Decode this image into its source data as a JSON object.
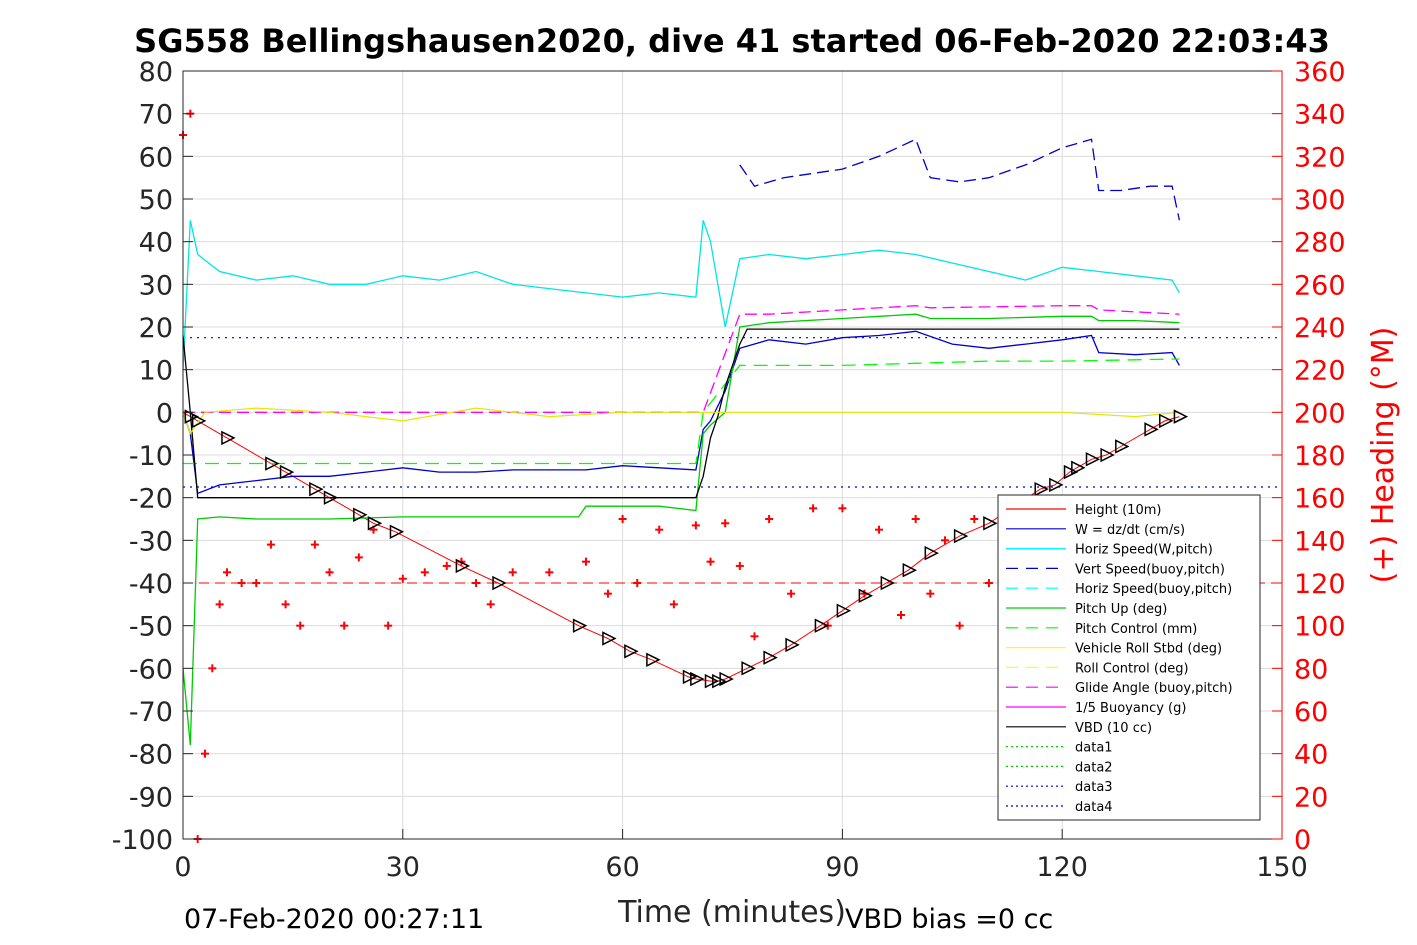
{
  "chart_data": {
    "type": "line",
    "title": "SG558 Bellingshausen2020, dive 41 started 06-Feb-2020 22:03:43",
    "xlabel": "Time (minutes)",
    "ylabel": "",
    "y2label": "(+) Heading (°M)",
    "xlim": [
      0,
      150
    ],
    "ylim": [
      -100,
      80
    ],
    "y2lim": [
      0,
      360
    ],
    "xticks": [
      0,
      30,
      60,
      90,
      120,
      150
    ],
    "yticks": [
      80,
      70,
      60,
      50,
      40,
      30,
      20,
      10,
      0,
      -10,
      -20,
      -30,
      -40,
      -50,
      -60,
      -70,
      -80,
      -90,
      -100
    ],
    "y2ticks": [
      360,
      340,
      320,
      300,
      280,
      260,
      240,
      220,
      200,
      180,
      160,
      140,
      120,
      100,
      80,
      60,
      40,
      20,
      0
    ],
    "grid": true,
    "legend_position": "bottom-right",
    "footer_left": "07-Feb-2020 00:27:11",
    "footer_right": "VBD bias =0 cc",
    "colors": {
      "height": "#ff0000",
      "w": "#0000cd",
      "horiz_speed": "#00ffff",
      "pitch": "#00ff00",
      "roll": "#ffff00",
      "glide": "#ff00ff",
      "vbd": "#000000",
      "heading": "#ff0000",
      "axis_right": "#ff0000"
    },
    "legend": [
      {
        "label": "Height (10m)",
        "color": "#ff0000",
        "dash": "solid"
      },
      {
        "label": "W = dz/dt (cm/s)",
        "color": "#0000cd",
        "dash": "solid"
      },
      {
        "label": "Horiz Speed(W,pitch)",
        "color": "#00ffff",
        "dash": "solid"
      },
      {
        "label": "Vert Speed(buoy,pitch)",
        "color": "#0000cd",
        "dash": "dashed"
      },
      {
        "label": "Horiz Speed(buoy,pitch)",
        "color": "#00ffff",
        "dash": "dashed"
      },
      {
        "label": "Pitch Up (deg)",
        "color": "#00cc00",
        "dash": "solid"
      },
      {
        "label": "Pitch Control (mm)",
        "color": "#00ff00",
        "dash": "dashed"
      },
      {
        "label": "Vehicle Roll Stbd (deg)",
        "color": "#ffff00",
        "dash": "solid"
      },
      {
        "label": "Roll Control (deg)",
        "color": "#ffff00",
        "dash": "dashed"
      },
      {
        "label": "Glide Angle (buoy,pitch)",
        "color": "#ff00ff",
        "dash": "dashed"
      },
      {
        "label": "1/5 Buoyancy (g)",
        "color": "#ff00ff",
        "dash": "solid"
      },
      {
        "label": "VBD (10 cc)",
        "color": "#000000",
        "dash": "solid"
      },
      {
        "label": "data1",
        "color": "#00cc00",
        "dash": "dotted"
      },
      {
        "label": "data2",
        "color": "#00cc00",
        "dash": "dotted"
      },
      {
        "label": "data3",
        "color": "#0000cd",
        "dash": "dotted"
      },
      {
        "label": "data4",
        "color": "#0000cd",
        "dash": "dotted"
      }
    ],
    "series": [
      {
        "name": "Height (10m)",
        "x": [
          0,
          1,
          2,
          6,
          12,
          14,
          18,
          20,
          24,
          26,
          29,
          38,
          43,
          54,
          58,
          61,
          64,
          69,
          70,
          72,
          73,
          74,
          77,
          80,
          83,
          87,
          90,
          93,
          96,
          99,
          102,
          106,
          110,
          117,
          119,
          121,
          122,
          124,
          126,
          128,
          132,
          134,
          136
        ],
        "y": [
          0,
          -1,
          -2,
          -6,
          -12,
          -14,
          -18,
          -20,
          -24,
          -26,
          -28,
          -36,
          -40,
          -50,
          -53,
          -56,
          -58,
          -62,
          -62.5,
          -63,
          -63,
          -62.5,
          -60,
          -57.5,
          -54.5,
          -50,
          -46.5,
          -43,
          -40,
          -37,
          -33,
          -29,
          -26,
          -18,
          -17,
          -14,
          -13,
          -11,
          -10,
          -8,
          -4,
          -2,
          -1
        ]
      },
      {
        "name": "W = dz/dt (cm/s)",
        "x": [
          0,
          1,
          2,
          5,
          10,
          15,
          20,
          25,
          30,
          35,
          40,
          45,
          50,
          55,
          60,
          65,
          70,
          71,
          72,
          74,
          76,
          80,
          85,
          90,
          95,
          100,
          105,
          110,
          115,
          120,
          124,
          125,
          130,
          135,
          136
        ],
        "y": [
          0,
          -5,
          -19,
          -17,
          -16,
          -15,
          -15,
          -14,
          -13,
          -14,
          -14,
          -13.5,
          -13.5,
          -13.5,
          -12.5,
          -13,
          -13.5,
          -4,
          -2,
          5,
          15,
          17,
          16,
          17.5,
          18,
          19,
          16,
          15,
          16,
          17,
          18,
          14,
          13.5,
          14,
          11
        ]
      },
      {
        "name": "Horiz Speed(W,pitch)",
        "x": [
          0,
          1,
          2,
          5,
          10,
          15,
          20,
          25,
          30,
          35,
          40,
          45,
          50,
          55,
          60,
          65,
          70,
          71,
          72,
          74,
          76,
          80,
          85,
          90,
          95,
          100,
          105,
          110,
          115,
          120,
          125,
          130,
          135,
          136
        ],
        "y": [
          10,
          45,
          37,
          33,
          31,
          32,
          30,
          30,
          32,
          31,
          33,
          30,
          29,
          28,
          27,
          28,
          27,
          45,
          40,
          20,
          36,
          37,
          36,
          37,
          38,
          37,
          35,
          33,
          31,
          34,
          33,
          32,
          31,
          28
        ]
      },
      {
        "name": "Vert Speed(buoy,pitch)",
        "x": [
          76,
          78,
          82,
          86,
          90,
          95,
          100,
          102,
          106,
          110,
          115,
          120,
          124,
          125,
          128,
          132,
          135,
          136
        ],
        "y": [
          58,
          53,
          55,
          56,
          57,
          60,
          64,
          55,
          54,
          55,
          58,
          62,
          64,
          52,
          52,
          53,
          53,
          45
        ]
      },
      {
        "name": "Pitch Up (deg)",
        "x": [
          0,
          1,
          2,
          5,
          10,
          20,
          30,
          40,
          50,
          54,
          55,
          60,
          65,
          70,
          71,
          72,
          74,
          76,
          80,
          90,
          100,
          102,
          110,
          120,
          124,
          125,
          130,
          136
        ],
        "y": [
          -60,
          -78,
          -25,
          -24.5,
          -25,
          -25,
          -24.5,
          -24.5,
          -24.5,
          -24.5,
          -22,
          -22,
          -22,
          -23,
          -5,
          -3,
          0,
          20,
          21,
          22,
          23,
          22,
          22,
          22.5,
          22.5,
          21.5,
          21.5,
          21
        ]
      },
      {
        "name": "Pitch Control (mm)",
        "x": [
          0,
          2,
          70,
          71,
          76,
          90,
          100,
          110,
          120,
          136
        ],
        "y": [
          -12,
          -12,
          -12,
          0,
          11,
          11,
          11.5,
          12,
          12,
          12.5
        ]
      },
      {
        "name": "Glide Angle (buoy,pitch)",
        "x": [
          0,
          70,
          71,
          76,
          80,
          90,
          100,
          102,
          120,
          124,
          125,
          136
        ],
        "y": [
          0,
          0,
          0,
          23,
          23,
          24,
          25,
          24.5,
          25,
          25,
          24,
          23
        ]
      },
      {
        "name": "VBD (10 cc)",
        "x": [
          0,
          1,
          2,
          70,
          71,
          72,
          73,
          74,
          76,
          77,
          90,
          100,
          110,
          120,
          136
        ],
        "y": [
          18,
          0,
          -20,
          -20,
          -15,
          -6,
          -1,
          6,
          16,
          19.5,
          19.5,
          19.5,
          19.5,
          19.5,
          19.5
        ]
      },
      {
        "name": "Vehicle Roll Stbd (deg)",
        "x": [
          0,
          1,
          3,
          10,
          20,
          30,
          40,
          50,
          60,
          70,
          72,
          74,
          80,
          90,
          100,
          110,
          120,
          130,
          136
        ],
        "y": [
          0,
          -5,
          0,
          1,
          0,
          -2,
          1,
          -1,
          0,
          0,
          0,
          0,
          0,
          0,
          0,
          0,
          0,
          -1,
          0
        ]
      },
      {
        "name": "(+) Heading (°M)",
        "x": [
          0,
          1,
          2,
          3,
          4,
          5,
          6,
          8,
          10,
          12,
          14,
          16,
          18,
          20,
          22,
          24,
          26,
          28,
          30,
          33,
          36,
          38,
          40,
          42,
          45,
          50,
          55,
          58,
          60,
          62,
          65,
          67,
          70,
          72,
          74,
          76,
          78,
          80,
          83,
          86,
          88,
          90,
          93,
          95,
          98,
          100,
          102,
          104,
          106,
          108,
          110,
          112,
          114
        ],
        "y": [
          330,
          340,
          0,
          40,
          80,
          110,
          125,
          120,
          120,
          138,
          110,
          100,
          138,
          125,
          100,
          132,
          145,
          100,
          122,
          125,
          128,
          130,
          120,
          110,
          125,
          125,
          130,
          115,
          150,
          120,
          145,
          110,
          147,
          130,
          148,
          128,
          95,
          150,
          115,
          155,
          100,
          155,
          115,
          145,
          105,
          150,
          115,
          140,
          100,
          150,
          120,
          140,
          115
        ]
      }
    ]
  }
}
